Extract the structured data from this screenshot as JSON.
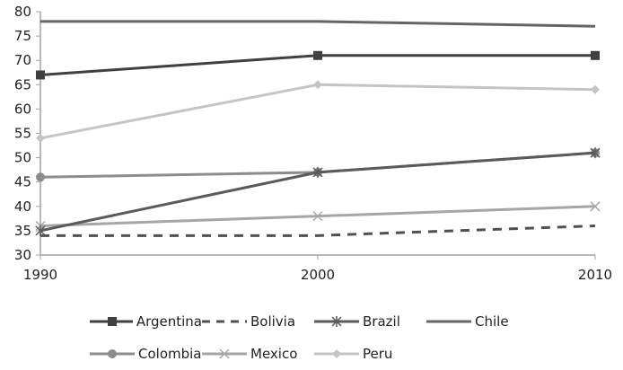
{
  "chart_data": {
    "type": "line",
    "title": "",
    "xlabel": "",
    "ylabel": "",
    "x": [
      "1990",
      "2000",
      "2010"
    ],
    "ylim": [
      30,
      80
    ],
    "yticks": [
      30,
      35,
      40,
      45,
      50,
      55,
      60,
      65,
      70,
      75,
      80
    ],
    "grid": false,
    "legend_position": "bottom",
    "series": [
      {
        "name": "Argentina",
        "values": [
          67,
          71,
          71
        ],
        "color": "#404040",
        "marker": "square",
        "dash": "solid"
      },
      {
        "name": "Bolivia",
        "values": [
          34,
          34,
          36
        ],
        "color": "#505050",
        "marker": "none",
        "dash": "dashed"
      },
      {
        "name": "Brazil",
        "values": [
          35,
          47,
          51
        ],
        "color": "#5a5a5a",
        "marker": "star",
        "dash": "solid"
      },
      {
        "name": "Chile",
        "values": [
          78,
          78,
          77
        ],
        "color": "#666666",
        "marker": "none",
        "dash": "solid"
      },
      {
        "name": "Colombia",
        "values": [
          46,
          47,
          51
        ],
        "color": "#8c8c8c",
        "marker": "circle",
        "dash": "solid"
      },
      {
        "name": "Mexico",
        "values": [
          36,
          38,
          40
        ],
        "color": "#a6a6a6",
        "marker": "x",
        "dash": "solid"
      },
      {
        "name": "Peru",
        "values": [
          54,
          65,
          64
        ],
        "color": "#c4c4c4",
        "marker": "diamond",
        "dash": "solid"
      }
    ]
  },
  "legend": {
    "rows": [
      [
        "Argentina",
        "Bolivia",
        "Brazil",
        "Chile"
      ],
      [
        "Colombia",
        "Mexico",
        "Peru"
      ]
    ]
  }
}
